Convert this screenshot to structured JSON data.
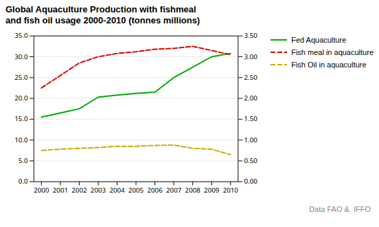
{
  "chart_data": {
    "type": "line",
    "title": "Global Aquaculture Production with fishmeal\nand fish oil usage 2000-2010 (tonnes millions)",
    "x": [
      2000,
      2001,
      2002,
      2003,
      2004,
      2005,
      2006,
      2007,
      2008,
      2009,
      2010
    ],
    "xlim": [
      1999.6,
      2010.4
    ],
    "xticks": [
      2000,
      2001,
      2002,
      2003,
      2004,
      2005,
      2006,
      2007,
      2008,
      2009,
      2010
    ],
    "series": [
      {
        "name": "Fed Aquaculture",
        "color": "#00aa00",
        "line_style": "solid",
        "axis": "y",
        "values": [
          15.5,
          16.5,
          17.5,
          20.3,
          20.8,
          21.2,
          21.5,
          25.0,
          27.5,
          30.0,
          30.8
        ]
      },
      {
        "name": "Fish meal in aquaculture",
        "color": "#dd0000",
        "line_style": "dashed",
        "axis": "y2",
        "values": [
          2.25,
          2.55,
          2.85,
          3.0,
          3.08,
          3.12,
          3.18,
          3.2,
          3.25,
          3.15,
          3.05
        ]
      },
      {
        "name": "Fish Oil in aquaculture",
        "color": "#ccaa00",
        "line_style": "dashed",
        "axis": "y2",
        "values": [
          0.75,
          0.78,
          0.8,
          0.82,
          0.85,
          0.85,
          0.87,
          0.88,
          0.8,
          0.78,
          0.65
        ]
      }
    ],
    "ylim": [
      0,
      35
    ],
    "yticks": [
      {
        "value": 0,
        "label": "0.0"
      },
      {
        "value": 5,
        "label": "5.0"
      },
      {
        "value": 10,
        "label": "10.0"
      },
      {
        "value": 15,
        "label": "15.0"
      },
      {
        "value": 20,
        "label": "20.0"
      },
      {
        "value": 25,
        "label": "25.0"
      },
      {
        "value": 30,
        "label": "30.0"
      },
      {
        "value": 35,
        "label": "35.0"
      }
    ],
    "y2lim": [
      0.0,
      3.5
    ],
    "y2ticks": [
      {
        "value": 0,
        "label": "0.00"
      },
      {
        "value": 0.5,
        "label": "0.50"
      },
      {
        "value": 1,
        "label": "1.00"
      },
      {
        "value": 1.5,
        "label": "1.50"
      },
      {
        "value": 2,
        "label": "2.00"
      },
      {
        "value": 2.5,
        "label": "2.50"
      },
      {
        "value": 3,
        "label": "3.00"
      },
      {
        "value": 3.5,
        "label": "3.50"
      }
    ],
    "grid": true,
    "legend": "right",
    "annotation": "Data FAO &  IFFO"
  }
}
